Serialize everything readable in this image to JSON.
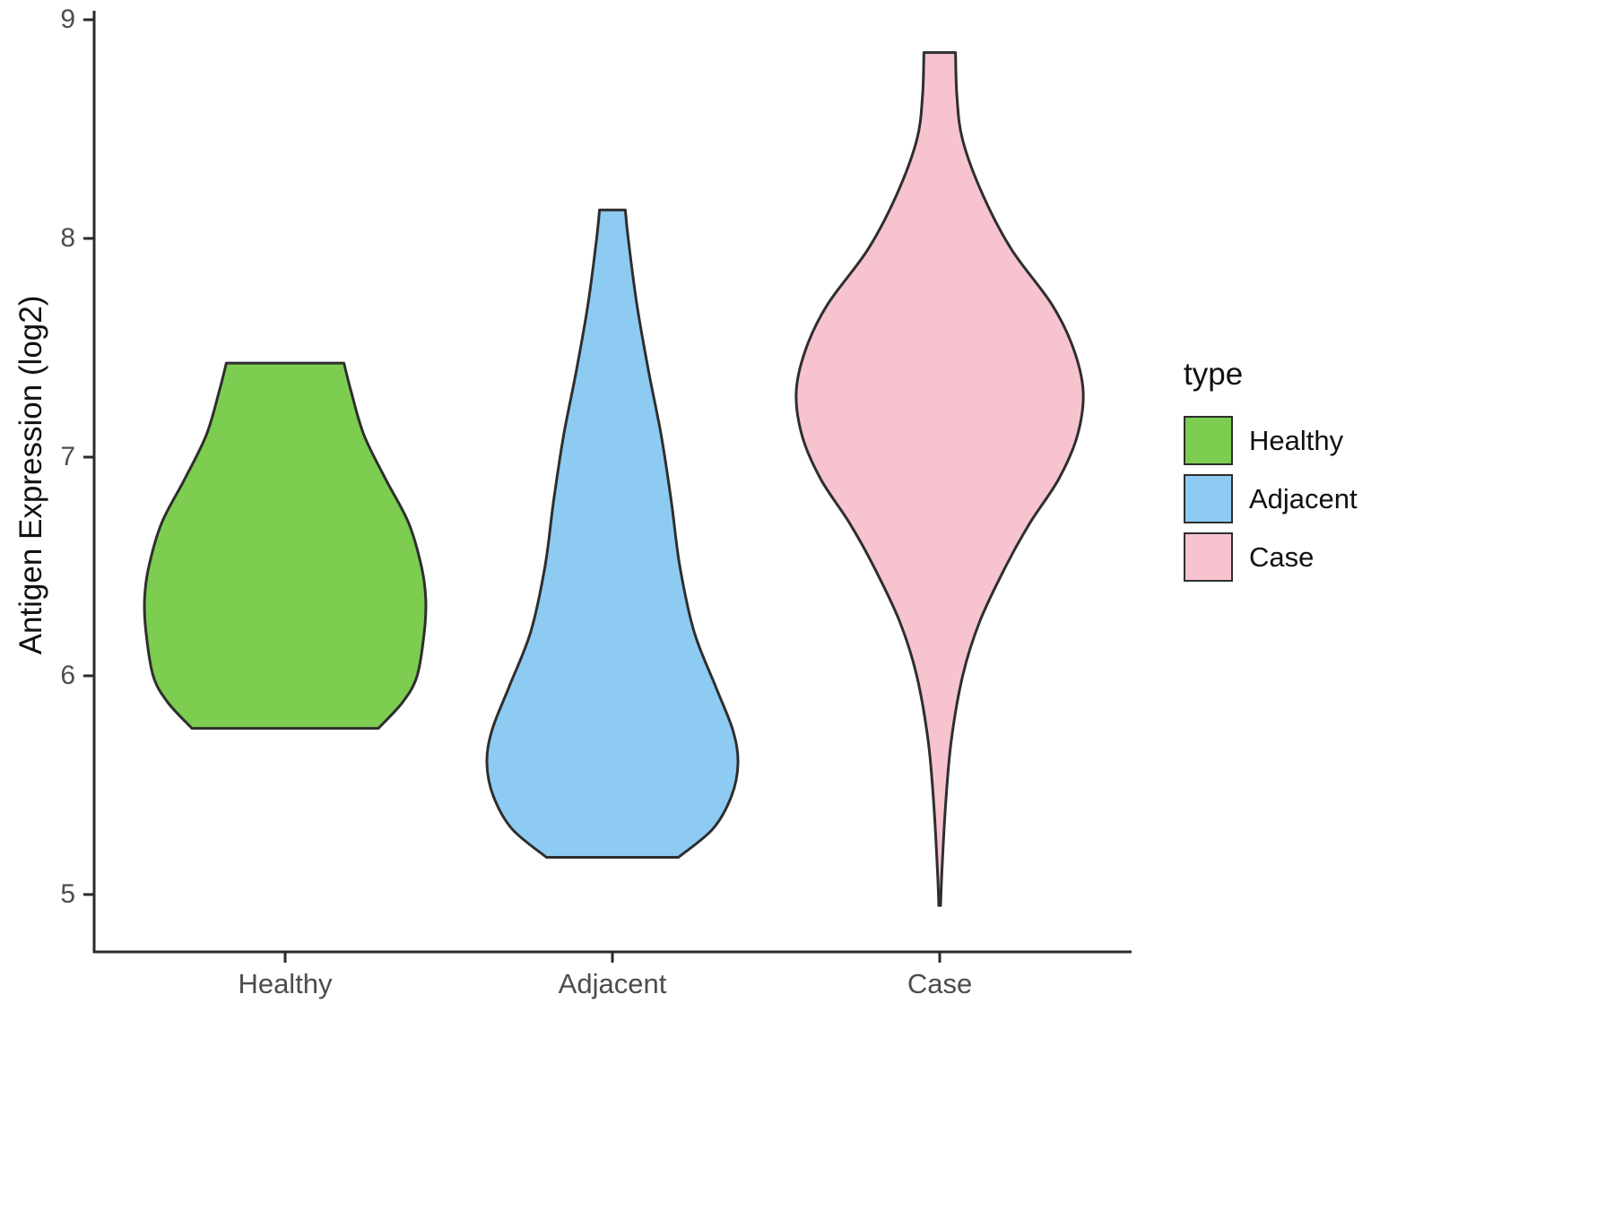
{
  "chart_data": {
    "type": "violin",
    "title": "",
    "xlabel": "",
    "ylabel": "Antigen Expression (log2)",
    "categories": [
      "Healthy",
      "Adjacent",
      "Case"
    ],
    "y_ticks": [
      5,
      6,
      7,
      8,
      9
    ],
    "ylim": [
      4.72,
      9.05
    ],
    "grid": false,
    "legend": {
      "title": "type",
      "position": "right",
      "entries": [
        {
          "label": "Healthy"
        },
        {
          "label": "Adjacent"
        },
        {
          "label": "Case"
        }
      ]
    },
    "outline_color": "#2e2e2e",
    "axis_color": "#2a2a2a",
    "tick_label_color": "#4d4d4d",
    "series": [
      {
        "name": "Healthy",
        "fill": "#7ccd50",
        "profile": [
          [
            7.43,
            0.41
          ],
          [
            7.3,
            0.46
          ],
          [
            7.1,
            0.55
          ],
          [
            6.9,
            0.7
          ],
          [
            6.7,
            0.86
          ],
          [
            6.5,
            0.95
          ],
          [
            6.35,
            0.98
          ],
          [
            6.2,
            0.97
          ],
          [
            6.0,
            0.92
          ],
          [
            5.88,
            0.82
          ],
          [
            5.76,
            0.65
          ]
        ]
      },
      {
        "name": "Adjacent",
        "fill": "#8dcbf2",
        "profile": [
          [
            8.13,
            0.09
          ],
          [
            8.0,
            0.11
          ],
          [
            7.7,
            0.17
          ],
          [
            7.4,
            0.25
          ],
          [
            7.1,
            0.34
          ],
          [
            6.8,
            0.41
          ],
          [
            6.5,
            0.47
          ],
          [
            6.2,
            0.57
          ],
          [
            5.95,
            0.72
          ],
          [
            5.75,
            0.84
          ],
          [
            5.6,
            0.875
          ],
          [
            5.45,
            0.83
          ],
          [
            5.3,
            0.7
          ],
          [
            5.17,
            0.46
          ]
        ]
      },
      {
        "name": "Case",
        "fill": "#f6c3cf",
        "profile": [
          [
            8.85,
            0.11
          ],
          [
            8.65,
            0.12
          ],
          [
            8.45,
            0.16
          ],
          [
            8.2,
            0.3
          ],
          [
            7.95,
            0.5
          ],
          [
            7.7,
            0.78
          ],
          [
            7.5,
            0.93
          ],
          [
            7.3,
            1.0
          ],
          [
            7.1,
            0.96
          ],
          [
            6.9,
            0.83
          ],
          [
            6.7,
            0.63
          ],
          [
            6.5,
            0.46
          ],
          [
            6.25,
            0.28
          ],
          [
            6.0,
            0.16
          ],
          [
            5.7,
            0.08
          ],
          [
            5.4,
            0.04
          ],
          [
            5.1,
            0.015
          ],
          [
            4.95,
            0.006
          ]
        ]
      }
    ]
  }
}
